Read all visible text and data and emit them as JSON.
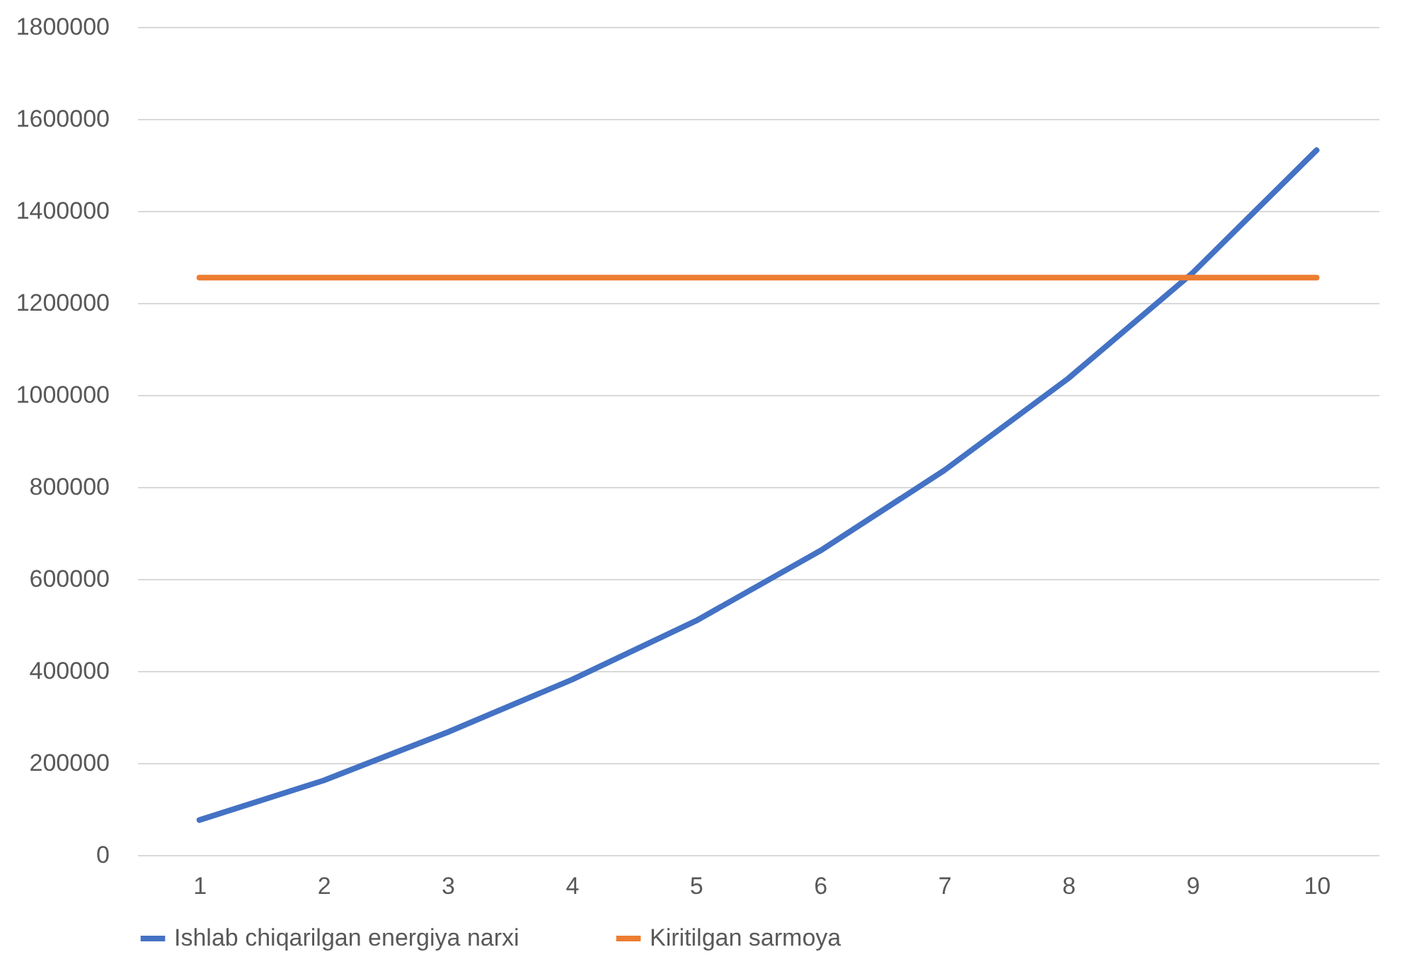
{
  "chart_data": {
    "type": "line",
    "categories": [
      "1",
      "2",
      "3",
      "4",
      "5",
      "6",
      "7",
      "8",
      "9",
      "10"
    ],
    "series": [
      {
        "name": "Ishlab chiqarilgan energiya narxi",
        "color": "#4472c4",
        "values": [
          76000,
          162000,
          267000,
          381000,
          509000,
          661000,
          836000,
          1036000,
          1265000,
          1532000
        ]
      },
      {
        "name": "Kiritilgan sarmoya",
        "color": "#ed7d31",
        "values": [
          1255000,
          1255000,
          1255000,
          1255000,
          1255000,
          1255000,
          1255000,
          1255000,
          1255000,
          1255000
        ]
      }
    ],
    "ylim": [
      0,
      1800000
    ],
    "yticks": [
      0,
      200000,
      400000,
      600000,
      800000,
      1000000,
      1200000,
      1400000,
      1600000,
      1800000
    ],
    "grid": "y",
    "legend": "bottom"
  }
}
